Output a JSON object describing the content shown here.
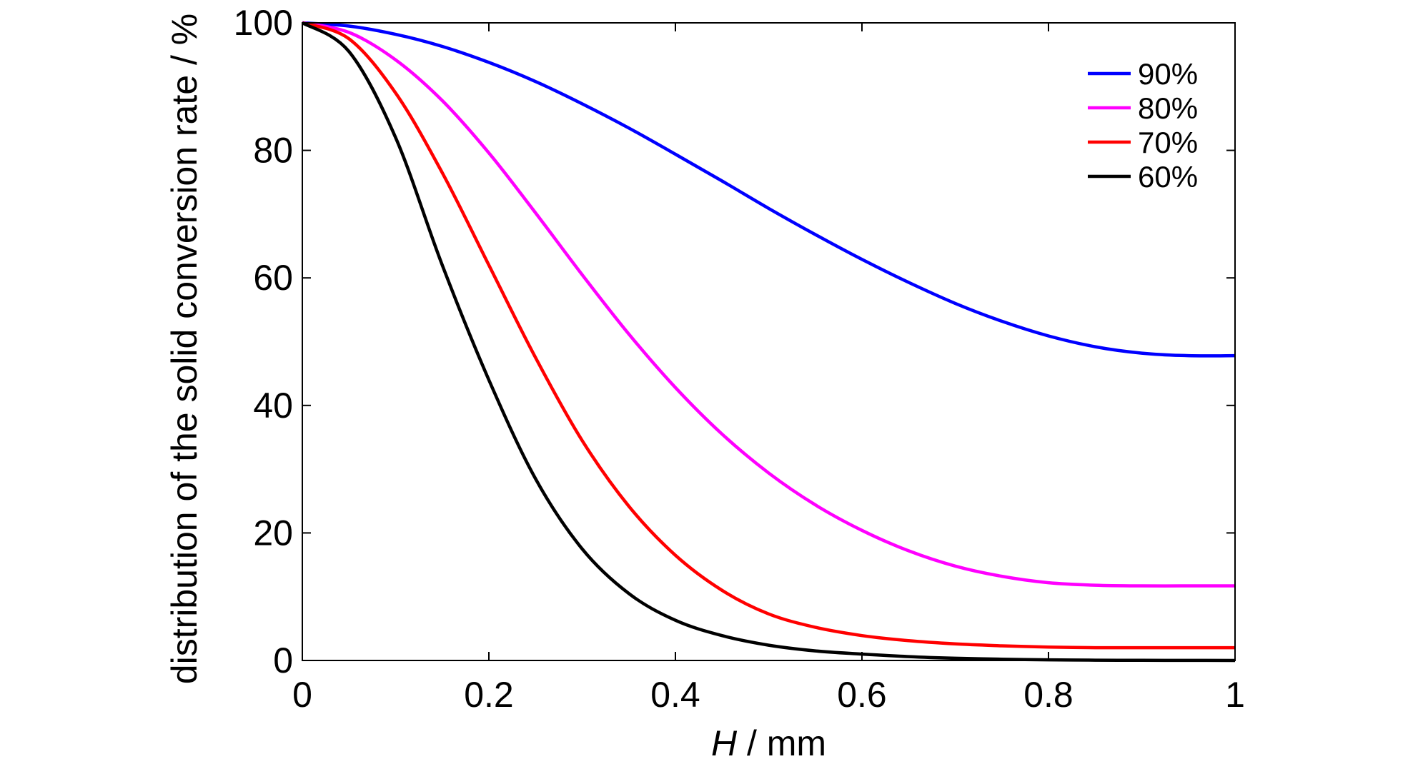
{
  "chart_data": {
    "type": "line",
    "title": "",
    "xlabel_italic": "H",
    "xlabel_rest": " / mm",
    "ylabel": "distribution of the solid conversion rate / %",
    "xlim": [
      0,
      1
    ],
    "ylim": [
      0,
      100
    ],
    "x_ticks": [
      0,
      0.2,
      0.4,
      0.6,
      0.8,
      1
    ],
    "x_tick_labels": [
      "0",
      "0.2",
      "0.4",
      "0.6",
      "0.8",
      "1"
    ],
    "y_ticks": [
      0,
      20,
      40,
      60,
      80,
      100
    ],
    "y_tick_labels": [
      "0",
      "20",
      "40",
      "60",
      "80",
      "100"
    ],
    "grid": false,
    "legend_position": "top-right",
    "x": [
      0,
      0.05,
      0.1,
      0.15,
      0.2,
      0.25,
      0.3,
      0.35,
      0.4,
      0.45,
      0.5,
      0.55,
      0.6,
      0.65,
      0.7,
      0.75,
      0.8,
      0.85,
      0.9,
      0.95,
      1.0
    ],
    "series": [
      {
        "name": "90%",
        "color": "#0000ff",
        "values": [
          100,
          99.5,
          98.2,
          96.3,
          93.8,
          90.8,
          87.3,
          83.5,
          79.4,
          75.2,
          70.9,
          66.8,
          62.9,
          59.3,
          56.0,
          53.2,
          50.9,
          49.2,
          48.2,
          47.8,
          47.8
        ]
      },
      {
        "name": "80%",
        "color": "#ff00ff",
        "values": [
          100,
          98.5,
          94.2,
          87.8,
          79.6,
          70.2,
          60.5,
          51.2,
          42.8,
          35.5,
          29.4,
          24.4,
          20.4,
          17.2,
          14.8,
          13.2,
          12.2,
          11.8,
          11.7,
          11.7,
          11.7
        ]
      },
      {
        "name": "70%",
        "color": "#ff0000",
        "values": [
          100,
          97.5,
          89.0,
          76.5,
          62.0,
          47.5,
          34.5,
          24.2,
          16.5,
          11.0,
          7.3,
          5.2,
          3.9,
          3.1,
          2.6,
          2.3,
          2.1,
          2.0,
          2.0,
          2.0,
          2.0
        ]
      },
      {
        "name": "60%",
        "color": "#000000",
        "values": [
          100,
          95.5,
          82.0,
          62.0,
          44.0,
          28.5,
          17.5,
          10.5,
          6.3,
          3.9,
          2.4,
          1.5,
          1.0,
          0.6,
          0.35,
          0.2,
          0.1,
          0.05,
          0.02,
          0.01,
          0.0
        ]
      }
    ]
  }
}
